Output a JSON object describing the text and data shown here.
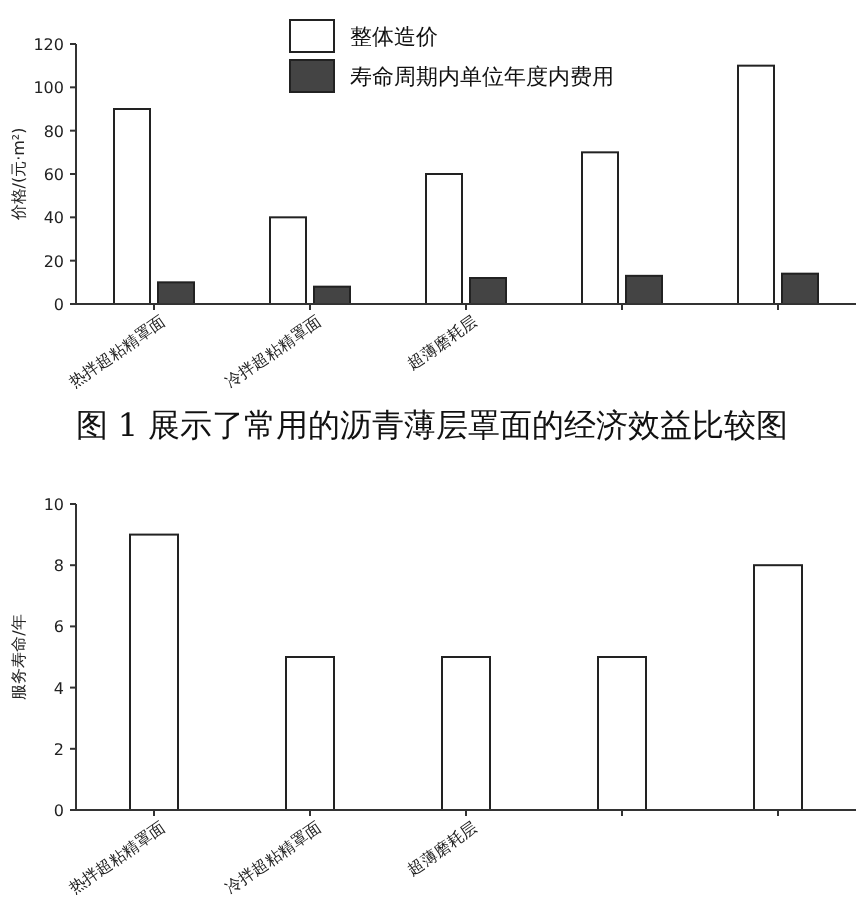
{
  "chart_data": [
    {
      "type": "bar",
      "categories": [
        "热拌超粘精罩面",
        "冷拌超粘精罩面",
        "超薄磨耗层",
        null,
        null
      ],
      "ylabel": "价格/(元·m²)",
      "ylim": [
        0,
        120
      ],
      "yticks": [
        0,
        20,
        40,
        60,
        80,
        100,
        120
      ],
      "legend": "top",
      "grid": false,
      "series": [
        {
          "name": "整体造价",
          "color": "#ffffff",
          "values": [
            90,
            40,
            60,
            70,
            110
          ]
        },
        {
          "name": "寿命周期内单位年度内费用",
          "color": "#444444",
          "values": [
            10,
            8,
            12,
            13,
            14
          ]
        }
      ],
      "annotations": [
        "图 1 展示了常用的沥青薄层罩面的经济效益比较图"
      ]
    },
    {
      "type": "bar",
      "categories": [
        "热拌超粘精罩面",
        "冷拌超粘精罩面",
        "超薄磨耗层",
        null,
        null
      ],
      "ylabel": "服务寿命/年",
      "ylim": [
        0,
        10
      ],
      "yticks": [
        0,
        2,
        4,
        6,
        8,
        10
      ],
      "grid": false,
      "series": [
        {
          "color": "#ffffff",
          "values": [
            9,
            5,
            5,
            5,
            8
          ]
        }
      ]
    }
  ]
}
